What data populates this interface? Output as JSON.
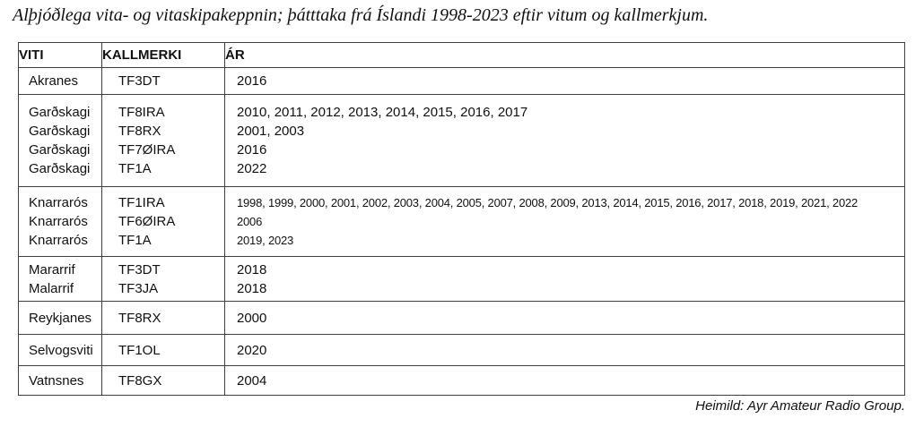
{
  "title": "Alþjóðlega vita- og vitaskipakeppnin; þátttaka frá Íslandi 1998-2023 eftir vitum og kallmerkjum.",
  "table": {
    "headers": [
      "VITI",
      "KALLMERKI",
      "ÁR"
    ],
    "groups": [
      {
        "rows": [
          {
            "viti": "Akranes",
            "kallmerki": "TF3DT",
            "ar": "2016"
          }
        ]
      },
      {
        "rows": [
          {
            "viti": "Garðskagi",
            "kallmerki": "TF8IRA",
            "ar": "2010, 2011, 2012, 2013, 2014, 2015, 2016, 2017"
          },
          {
            "viti": "Garðskagi",
            "kallmerki": "TF8RX",
            "ar": "2001, 2003"
          },
          {
            "viti": "Garðskagi",
            "kallmerki": "TF7ØIRA",
            "ar": "2016"
          },
          {
            "viti": "Garðskagi",
            "kallmerki": "TF1A",
            "ar": "2022"
          }
        ]
      },
      {
        "small_years": true,
        "rows": [
          {
            "viti": "Knarrarós",
            "kallmerki": "TF1IRA",
            "ar": "1998, 1999, 2000, 2001, 2002, 2003, 2004, 2005, 2007, 2008, 2009, 2013, 2014, 2015, 2016,  2017, 2018, 2019, 2021, 2022"
          },
          {
            "viti": "Knarrarós",
            "kallmerki": "TF6ØIRA",
            "ar": "2006"
          },
          {
            "viti": "Knarrarós",
            "kallmerki": "TF1A",
            "ar": "2019, 2023"
          }
        ]
      },
      {
        "rows": [
          {
            "viti": "Mararrif",
            "kallmerki": "TF3DT",
            "ar": "2018"
          },
          {
            "viti": "Malarrif",
            "kallmerki": "TF3JA",
            "ar": "2018"
          }
        ]
      },
      {
        "rows": [
          {
            "viti": "Reykjanes",
            "kallmerki": "TF8RX",
            "ar": "2000"
          }
        ]
      },
      {
        "rows": [
          {
            "viti": "Selvogsviti",
            "kallmerki": "TF1OL",
            "ar": "2020"
          }
        ]
      },
      {
        "rows": [
          {
            "viti": "Vatnsnes",
            "kallmerki": "TF8GX",
            "ar": "2004"
          }
        ]
      }
    ]
  },
  "footer": {
    "source": "Heimild: Ayr Amateur Radio Group."
  }
}
